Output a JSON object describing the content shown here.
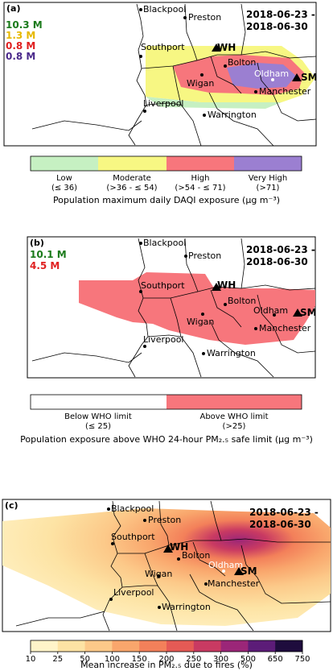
{
  "panel_a": {
    "label": "(a)",
    "date_range": [
      "2018-06-23 -",
      "2018-06-30"
    ],
    "stats": [
      {
        "value": "10.3 M",
        "color": "#1a7a1a"
      },
      {
        "value": "1.3 M",
        "color": "#e6b800"
      },
      {
        "value": "0.8 M",
        "color": "#e02020"
      },
      {
        "value": "0.8 M",
        "color": "#4b2a8c"
      }
    ],
    "legend": {
      "colors": [
        "#c6f0c2",
        "#f7f783",
        "#f7767c",
        "#9b7fd1"
      ],
      "names": [
        "Low",
        "Moderate",
        "High",
        "Very High"
      ],
      "ranges": [
        "(≤ 36)",
        "(>36 - ≤ 54)",
        "(>54 - ≤ 71)",
        "(>71)"
      ],
      "title": "Population maximum daily DAQI exposure (μg m⁻³)"
    }
  },
  "panel_b": {
    "label": "(b)",
    "date_range": [
      "2018-06-23 -",
      "2018-06-30"
    ],
    "stats": [
      {
        "value": "10.1 M",
        "color": "#1a7a1a"
      },
      {
        "value": "4.5 M",
        "color": "#e02020"
      }
    ],
    "legend": {
      "colors": [
        "#ffffff",
        "#f7767c"
      ],
      "names": [
        "Below WHO limit",
        "Above WHO limit"
      ],
      "ranges": [
        "(≤ 25)",
        "(>25)"
      ],
      "title": "Population exposure above WHO 24-hour PM₂.₅ safe limit (μg m⁻³)"
    }
  },
  "panel_c": {
    "label": "(c)",
    "date_range": [
      "2018-06-23 -",
      "2018-06-30"
    ],
    "colorbar": {
      "ticks": [
        "10",
        "25",
        "50",
        "100",
        "150",
        "200",
        "250",
        "300",
        "500",
        "650",
        "750"
      ],
      "colors": [
        "#fff4c9",
        "#fde3a4",
        "#fcc989",
        "#f9a66c",
        "#f3805a",
        "#e55a55",
        "#c93a62",
        "#9b2678",
        "#5c1c78",
        "#1e0c3d"
      ],
      "title": "Mean increase in PM₂.₅ due to fires (%)"
    }
  },
  "places": {
    "blackpool": "Blackpool",
    "preston": "Preston",
    "southport": "Southport",
    "wh": "WH",
    "bolton": "Bolton",
    "oldham": "Oldham",
    "sm": "SM",
    "wigan": "Wigan",
    "manchester": "Manchester",
    "liverpool": "Liverpool",
    "warrington": "Warrington"
  }
}
